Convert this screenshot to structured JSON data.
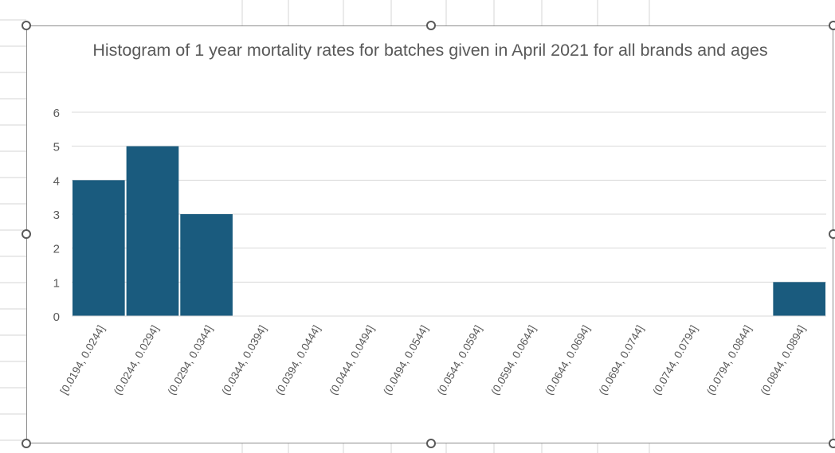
{
  "colors": {
    "bar": "#1a5b7e",
    "gridline": "#d9d9d9",
    "axis_text": "#595959",
    "title_text": "#595959",
    "sheet_grid": "#d4d4d4",
    "frame_border": "#8c8c8c"
  },
  "selection_handle_icon": "circle-handle-icon",
  "chart_data": {
    "type": "bar",
    "title": "Histogram of 1 year mortality rates for batches given in April 2021 for all brands and ages",
    "xlabel": "",
    "ylabel": "",
    "categories": [
      "[0.0194, 0.0244]",
      "(0.0244, 0.0294]",
      "(0.0294, 0.0344]",
      "(0.0344, 0.0394]",
      "(0.0394, 0.0444]",
      "(0.0444, 0.0494]",
      "(0.0494, 0.0544]",
      "(0.0544, 0.0594]",
      "(0.0594, 0.0644]",
      "(0.0644, 0.0694]",
      "(0.0694, 0.0744]",
      "(0.0744, 0.0794]",
      "(0.0794, 0.0844]",
      "(0.0844, 0.0894]"
    ],
    "values": [
      4,
      5,
      3,
      0,
      0,
      0,
      0,
      0,
      0,
      0,
      0,
      0,
      0,
      1
    ],
    "yticks": [
      "0",
      "1",
      "2",
      "3",
      "4",
      "5",
      "6"
    ],
    "ylim": [
      0,
      6
    ],
    "grid": true,
    "legend": "none"
  }
}
